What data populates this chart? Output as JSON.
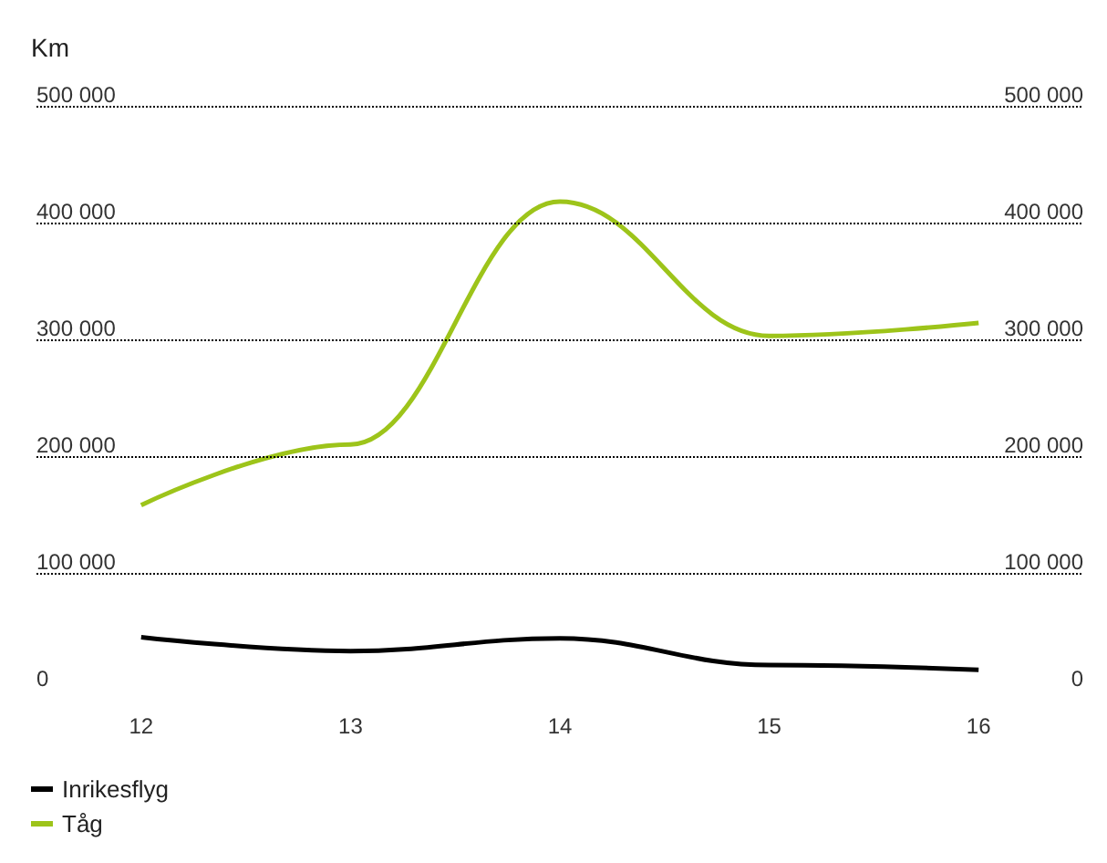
{
  "chart_data": {
    "type": "line",
    "ylabel": "Km",
    "categories": [
      "12",
      "13",
      "14",
      "15",
      "16"
    ],
    "series": [
      {
        "name": "Inrikesflyg",
        "color": "#000000",
        "values": [
          45000,
          33000,
          44000,
          21000,
          17000
        ]
      },
      {
        "name": "Tåg",
        "color": "#9dc41a",
        "values": [
          158000,
          210000,
          418000,
          303000,
          314000
        ]
      }
    ],
    "ylim": [
      0,
      500000
    ],
    "yticks": [
      {
        "value": 0,
        "label": "0"
      },
      {
        "value": 100000,
        "label": "100 000"
      },
      {
        "value": 200000,
        "label": "200 000"
      },
      {
        "value": 300000,
        "label": "300 000"
      },
      {
        "value": 400000,
        "label": "400 000"
      },
      {
        "value": 500000,
        "label": "500 000"
      }
    ],
    "y2lim": [
      0,
      500000
    ],
    "y2ticks": [
      {
        "value": 0,
        "label": "0"
      },
      {
        "value": 100000,
        "label": "100 000"
      },
      {
        "value": 200000,
        "label": "200 000"
      },
      {
        "value": 300000,
        "label": "300 000"
      },
      {
        "value": 400000,
        "label": "400 000"
      },
      {
        "value": 500000,
        "label": "500 000"
      }
    ],
    "grid": "y",
    "legend": "bottom left",
    "marker": "none",
    "line_style": "solid"
  }
}
